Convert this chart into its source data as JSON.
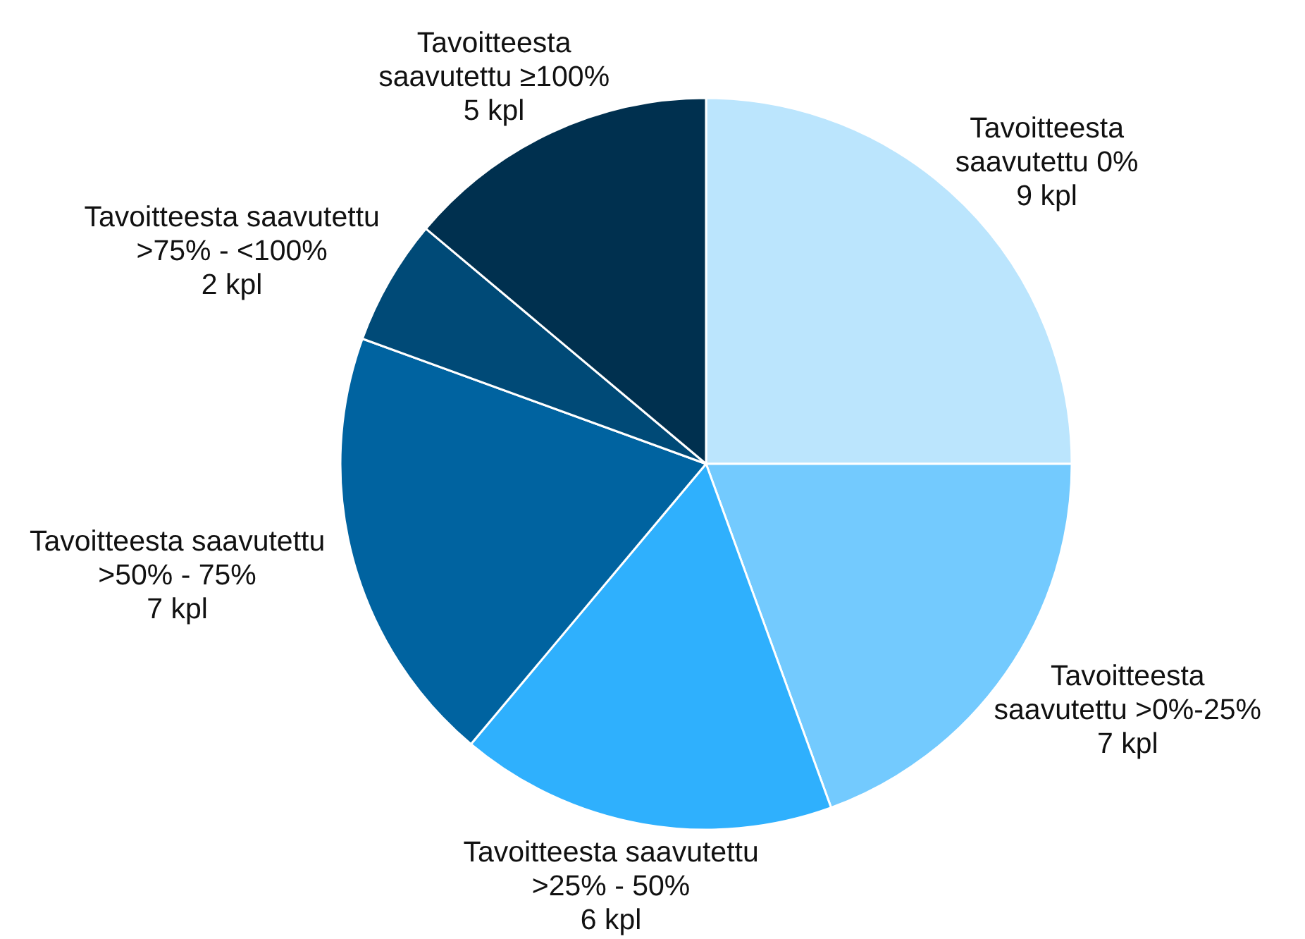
{
  "chart_data": {
    "type": "pie",
    "categories": [
      "Tavoitteesta saavutettu 0%",
      "Tavoitteesta saavutettu >0%-25%",
      "Tavoitteesta saavutettu >25% - 50%",
      "Tavoitteesta saavutettu >50% - 75%",
      "Tavoitteesta saavutettu >75% - <100%",
      "Tavoitteesta saavutettu ≥100%"
    ],
    "values": [
      9,
      7,
      6,
      7,
      2,
      5
    ],
    "colors": [
      "#bbe5fd",
      "#73cafe",
      "#2fb0fd",
      "#0063a0",
      "#004a77",
      "#00304f"
    ],
    "value_labels": [
      "9 kpl",
      "7 kpl",
      "6 kpl",
      "7 kpl",
      "2 kpl",
      "5 kpl"
    ]
  }
}
